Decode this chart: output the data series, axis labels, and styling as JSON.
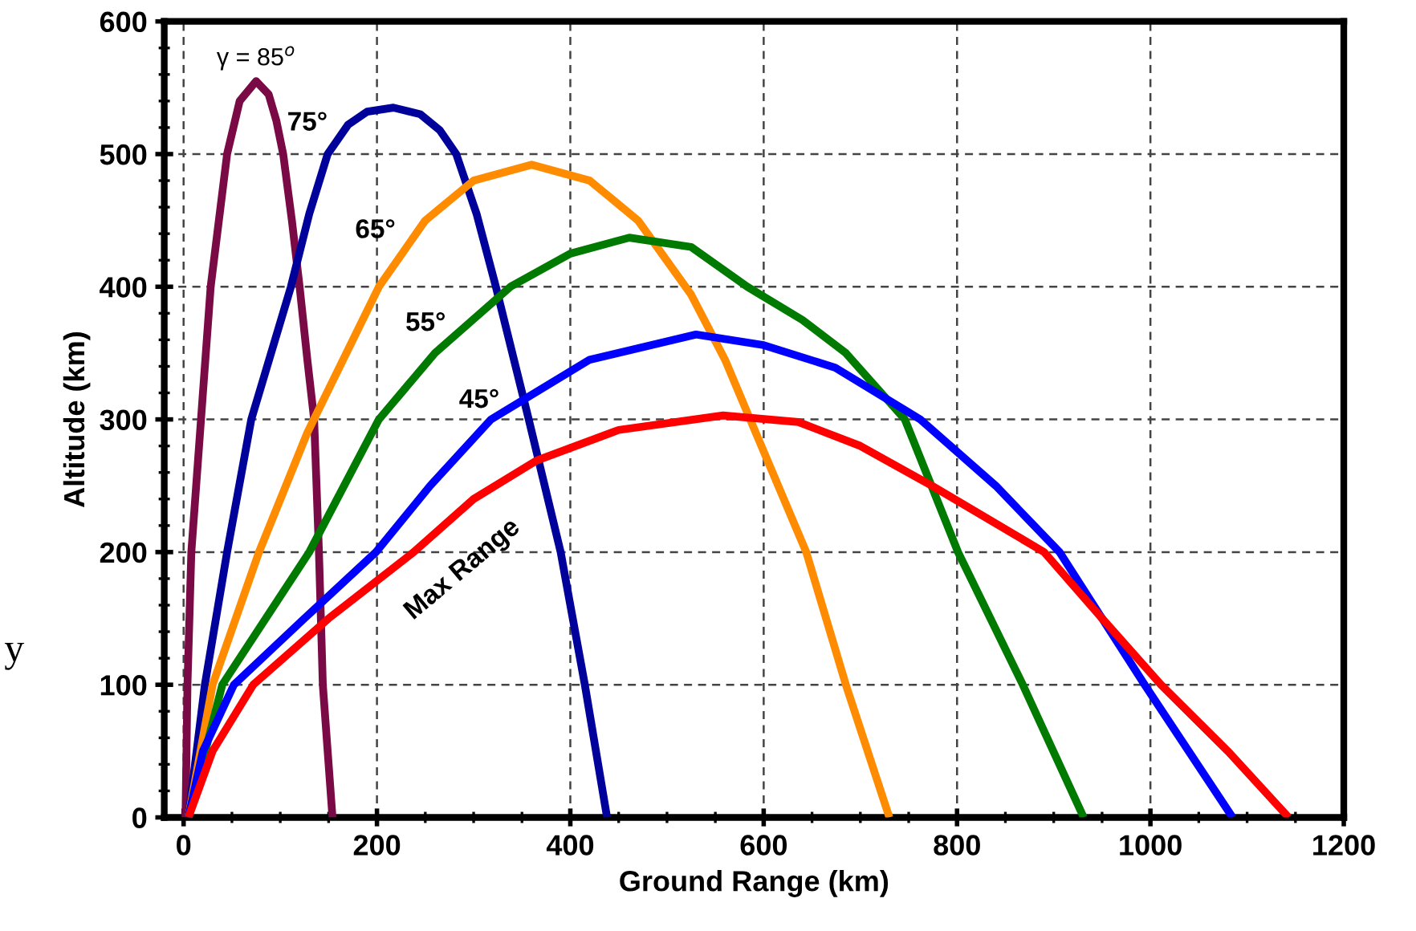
{
  "chart_data": {
    "type": "line",
    "xlabel": "Ground Range (km)",
    "ylabel": "Altitude (km)",
    "xlim": [
      -20,
      1200
    ],
    "xticks": [
      0,
      200,
      400,
      600,
      800,
      1000,
      1200
    ],
    "ylim": [
      0,
      600
    ],
    "yticks": [
      0,
      100,
      200,
      300,
      400,
      500,
      600
    ],
    "grid": true,
    "legend": false,
    "marker": "none",
    "line_style": "solid",
    "annotations": [
      "y"
    ],
    "series": [
      {
        "name": "γ = 85$^{o}$",
        "color": "#7a0a45",
        "x": [
          2,
          4,
          8,
          18,
          28,
          45,
          58,
          75,
          88,
          96,
          103,
          112,
          120,
          128,
          135,
          140,
          144,
          154
        ],
        "values": [
          0,
          100,
          200,
          300,
          400,
          500,
          540,
          555,
          545,
          525,
          500,
          450,
          400,
          345,
          300,
          200,
          100,
          0
        ]
      },
      {
        "name": "75°",
        "color": "#00009a",
        "x": [
          5,
          22,
          45,
          70,
          111,
          130,
          149,
          170,
          190,
          217,
          245,
          265,
          282,
          303,
          323,
          357,
          390,
          415,
          438
        ],
        "values": [
          0,
          100,
          200,
          300,
          400,
          455,
          500,
          522,
          532,
          535,
          530,
          518,
          500,
          455,
          400,
          300,
          200,
          100,
          0
        ]
      },
      {
        "name": "65°",
        "color": "#ff8c00",
        "x": [
          5,
          30,
          78,
          128,
          202,
          250,
          300,
          360,
          420,
          470,
          525,
          560,
          586,
          644,
          685,
          730
        ],
        "values": [
          0,
          100,
          200,
          290,
          400,
          450,
          480,
          492,
          480,
          450,
          394,
          345,
          300,
          200,
          100,
          0
        ]
      },
      {
        "name": "55°",
        "color": "#007a00",
        "x": [
          5,
          40,
          130,
          202,
          260,
          338,
          400,
          461,
          525,
          583,
          640,
          685,
          746,
          801,
          868,
          931
        ],
        "values": [
          0,
          100,
          200,
          300,
          350,
          400,
          425,
          437,
          430,
          400,
          375,
          350,
          300,
          200,
          100,
          0
        ]
      },
      {
        "name": "45°",
        "color": "#0000ff",
        "x": [
          5,
          20,
          52,
          125,
          199,
          255,
          318,
          420,
          530,
          600,
          674,
          762,
          840,
          906,
          994,
          1085
        ],
        "values": [
          0,
          50,
          100,
          150,
          200,
          250,
          300,
          345,
          364,
          356,
          339,
          300,
          250,
          200,
          100,
          0
        ]
      },
      {
        "name": "Max Range",
        "color": "#ff0000",
        "x": [
          5,
          30,
          72,
          150,
          238,
          300,
          365,
          450,
          558,
          636,
          700,
          774,
          890,
          950,
          1011,
          1080,
          1143
        ],
        "values": [
          0,
          50,
          100,
          150,
          200,
          240,
          269,
          292,
          303,
          298,
          280,
          250,
          200,
          150,
          100,
          50,
          0
        ]
      }
    ]
  }
}
